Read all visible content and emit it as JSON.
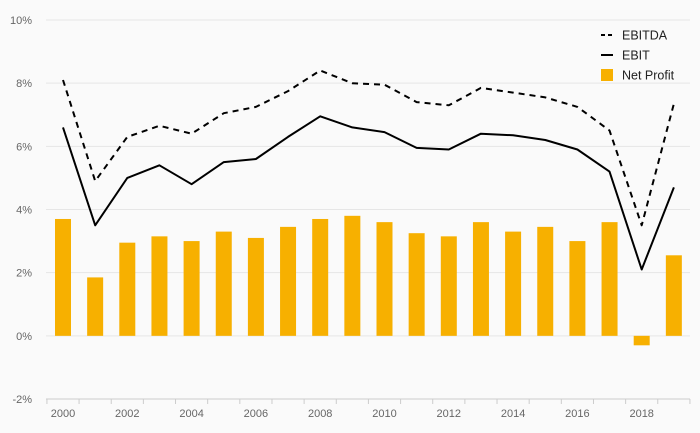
{
  "chart_data": {
    "type": "bar",
    "title": "",
    "xlabel": "",
    "ylabel": "",
    "ylim": [
      -2,
      10
    ],
    "y_ticks": [
      -2,
      0,
      2,
      4,
      6,
      8,
      10
    ],
    "y_tick_suffix": "%",
    "x_tick_labels": [
      "2000",
      "2002",
      "2004",
      "2006",
      "2008",
      "2010",
      "2012",
      "2014",
      "2016",
      "2018"
    ],
    "categories": [
      "2000",
      "2001",
      "2002",
      "2003",
      "2004",
      "2005",
      "2006",
      "2007",
      "2008",
      "2009",
      "2010",
      "2011",
      "2012",
      "2013",
      "2014",
      "2015",
      "2016",
      "2017",
      "2018",
      "2019"
    ],
    "grid": true,
    "legend_position": "top-right",
    "series": [
      {
        "name": "EBITDA",
        "kind": "line",
        "style": "dashed",
        "color": "#000000",
        "values": [
          8.1,
          4.9,
          6.3,
          6.65,
          6.4,
          7.05,
          7.25,
          7.75,
          8.4,
          8.0,
          7.95,
          7.4,
          7.3,
          7.85,
          7.7,
          7.55,
          7.25,
          6.5,
          3.5,
          7.35
        ]
      },
      {
        "name": "EBIT",
        "kind": "line",
        "style": "solid",
        "color": "#000000",
        "values": [
          6.6,
          3.5,
          5.0,
          5.4,
          4.8,
          5.5,
          5.6,
          6.3,
          6.95,
          6.6,
          6.45,
          5.95,
          5.9,
          6.4,
          6.35,
          6.2,
          5.9,
          5.2,
          2.1,
          4.7
        ]
      },
      {
        "name": "Net Profit",
        "kind": "bar",
        "color": "#f7b000",
        "values": [
          3.7,
          1.85,
          2.95,
          3.15,
          3.0,
          3.3,
          3.1,
          3.45,
          3.7,
          3.8,
          3.6,
          3.25,
          3.15,
          3.6,
          3.3,
          3.45,
          3.0,
          3.6,
          -0.3,
          2.55
        ]
      }
    ]
  }
}
